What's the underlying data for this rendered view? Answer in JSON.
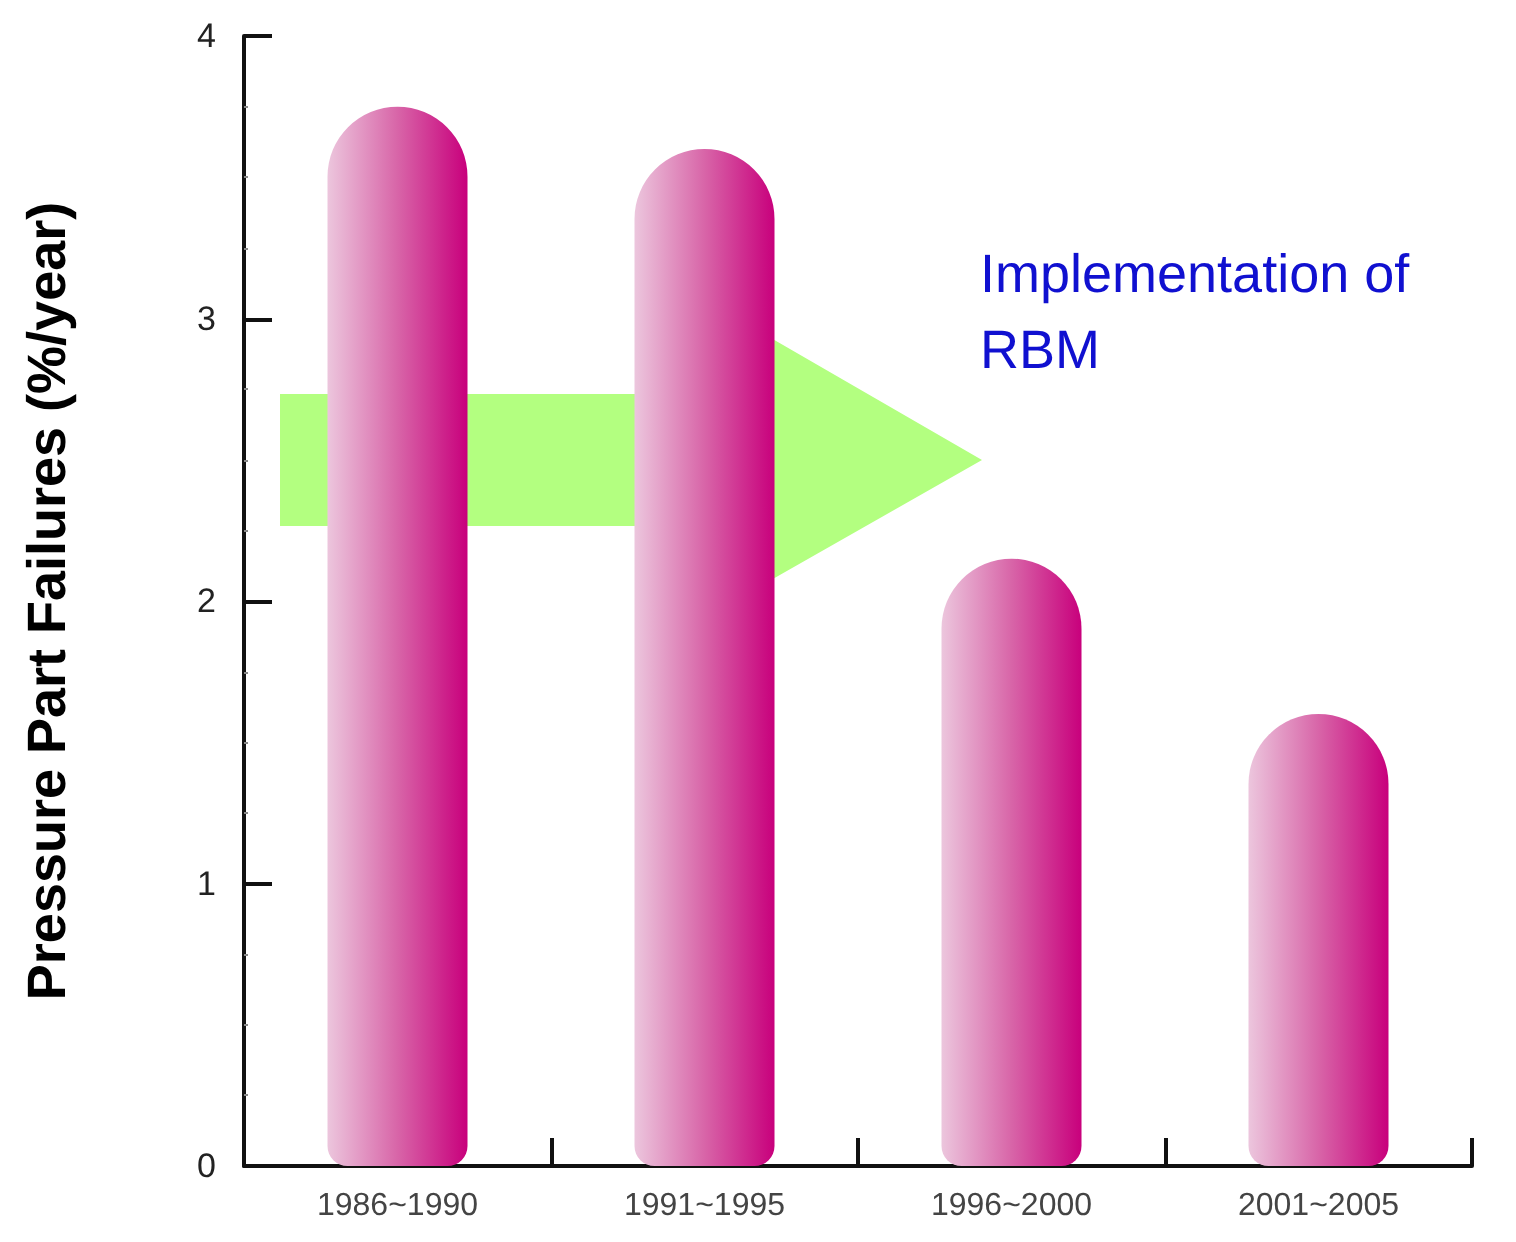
{
  "chart_data": {
    "type": "bar",
    "ylabel": "Pressure Part Failures (%/year)",
    "categories": [
      "1986~1990",
      "1991~1995",
      "1996~2000",
      "2001~2005"
    ],
    "values": [
      3.75,
      3.6,
      2.15,
      1.6
    ],
    "color": "#c8007c",
    "ylim": [
      0,
      4
    ],
    "yticks": [
      0,
      1,
      2,
      3,
      4
    ],
    "grid": false,
    "annotations": [
      "Implementation of RBM"
    ]
  }
}
